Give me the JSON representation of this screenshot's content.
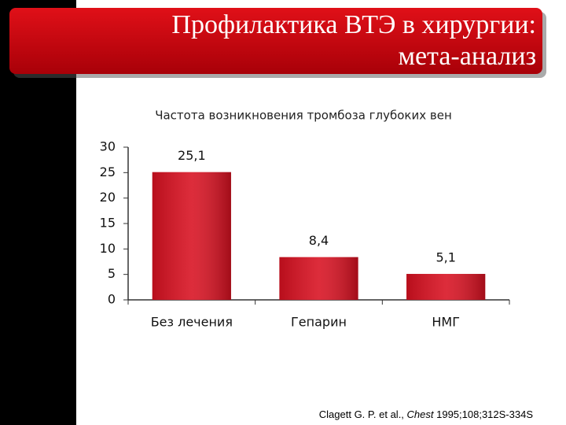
{
  "header": {
    "title_lines": [
      "Профилактика ВТЭ в хирургии:",
      "мета-анализ"
    ]
  },
  "chart_data": {
    "type": "bar",
    "title": "Частота возникновения тромбоза глубоких вен",
    "categories": [
      "Без лечения",
      "Гепарин",
      "НМГ"
    ],
    "values": [
      25.1,
      8.4,
      5.1
    ],
    "value_labels": [
      "25,1",
      "8,4",
      "5,1"
    ],
    "color": "#d81020",
    "ylim": [
      0,
      30
    ],
    "yticks": [
      0,
      5,
      10,
      15,
      20,
      25,
      30
    ],
    "grid": false
  },
  "citation": {
    "before": "Clagett G. P. et al., ",
    "journal": "Chest",
    "after": " 1995;108;312S-334S"
  }
}
